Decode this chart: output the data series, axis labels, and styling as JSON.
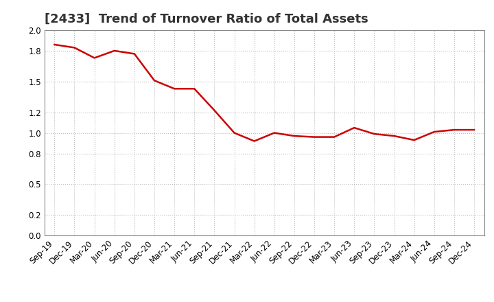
{
  "title": "[2433]  Trend of Turnover Ratio of Total Assets",
  "x_labels": [
    "Sep-19",
    "Dec-19",
    "Mar-20",
    "Jun-20",
    "Sep-20",
    "Dec-20",
    "Mar-21",
    "Jun-21",
    "Sep-21",
    "Dec-21",
    "Mar-22",
    "Jun-22",
    "Sep-22",
    "Dec-22",
    "Mar-23",
    "Jun-23",
    "Sep-23",
    "Dec-23",
    "Mar-24",
    "Jun-24",
    "Sep-24",
    "Dec-24"
  ],
  "y_values": [
    1.86,
    1.83,
    1.73,
    1.8,
    1.77,
    1.51,
    1.43,
    1.43,
    1.22,
    1.0,
    0.92,
    1.0,
    0.97,
    0.96,
    0.96,
    1.05,
    0.99,
    0.97,
    0.93,
    1.01,
    1.03,
    1.03
  ],
  "line_color": "#cc0000",
  "line_width": 1.8,
  "ylim": [
    0.0,
    2.0
  ],
  "yticks": [
    0.0,
    0.2,
    0.5,
    0.8,
    1.0,
    1.2,
    1.5,
    1.8,
    2.0
  ],
  "background_color": "#ffffff",
  "plot_bg_color": "#ffffff",
  "grid_color": "#bbbbbb",
  "title_fontsize": 13,
  "tick_fontsize": 8.5,
  "title_color": "#333333"
}
